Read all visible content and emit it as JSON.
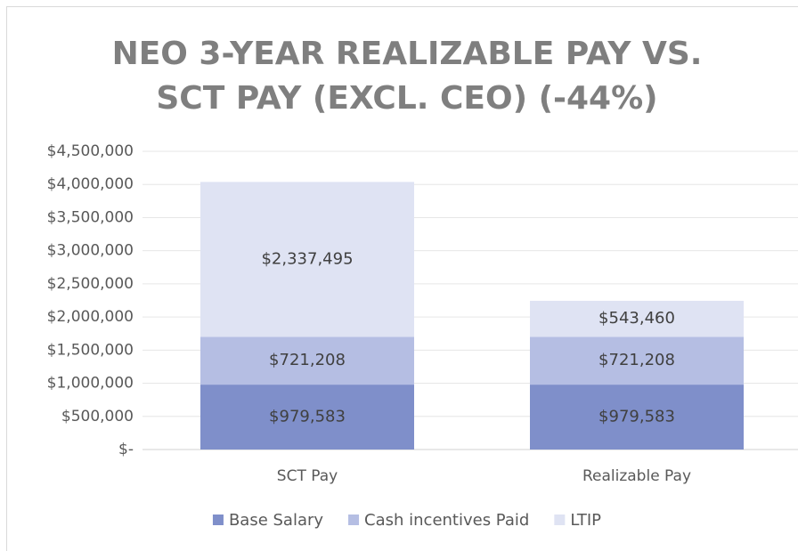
{
  "chart_data": {
    "type": "stacked_bar",
    "title": [
      "NEO 3-YEAR REALIZABLE PAY VS.",
      "SCT PAY (EXCL. CEO) (-44%)"
    ],
    "categories": [
      "SCT Pay",
      "Realizable Pay"
    ],
    "series": [
      {
        "name": "Base Salary",
        "color": "#7f8fca",
        "values": [
          979583,
          979583
        ],
        "value_labels": [
          "$979,583",
          "$979,583"
        ]
      },
      {
        "name": "Cash incentives Paid",
        "color": "#b5bee3",
        "values": [
          721208,
          721208
        ],
        "value_labels": [
          "$721,208",
          "$721,208"
        ]
      },
      {
        "name": "LTIP",
        "color": "#dfe3f3",
        "values": [
          2337495,
          543460
        ],
        "value_labels": [
          "$2,337,495",
          "$543,460"
        ]
      }
    ],
    "ylim": [
      0,
      4500000
    ],
    "yticks": [
      {
        "value": 0,
        "label": "$-"
      },
      {
        "value": 500000,
        "label": "$500,000"
      },
      {
        "value": 1000000,
        "label": "$1,000,000"
      },
      {
        "value": 1500000,
        "label": "$1,500,000"
      },
      {
        "value": 2000000,
        "label": "$2,000,000"
      },
      {
        "value": 2500000,
        "label": "$2,500,000"
      },
      {
        "value": 3000000,
        "label": "$3,000,000"
      },
      {
        "value": 3500000,
        "label": "$3,500,000"
      },
      {
        "value": 4000000,
        "label": "$4,000,000"
      },
      {
        "value": 4500000,
        "label": "$4,500,000"
      }
    ],
    "grid": true,
    "legend": "bottom"
  }
}
